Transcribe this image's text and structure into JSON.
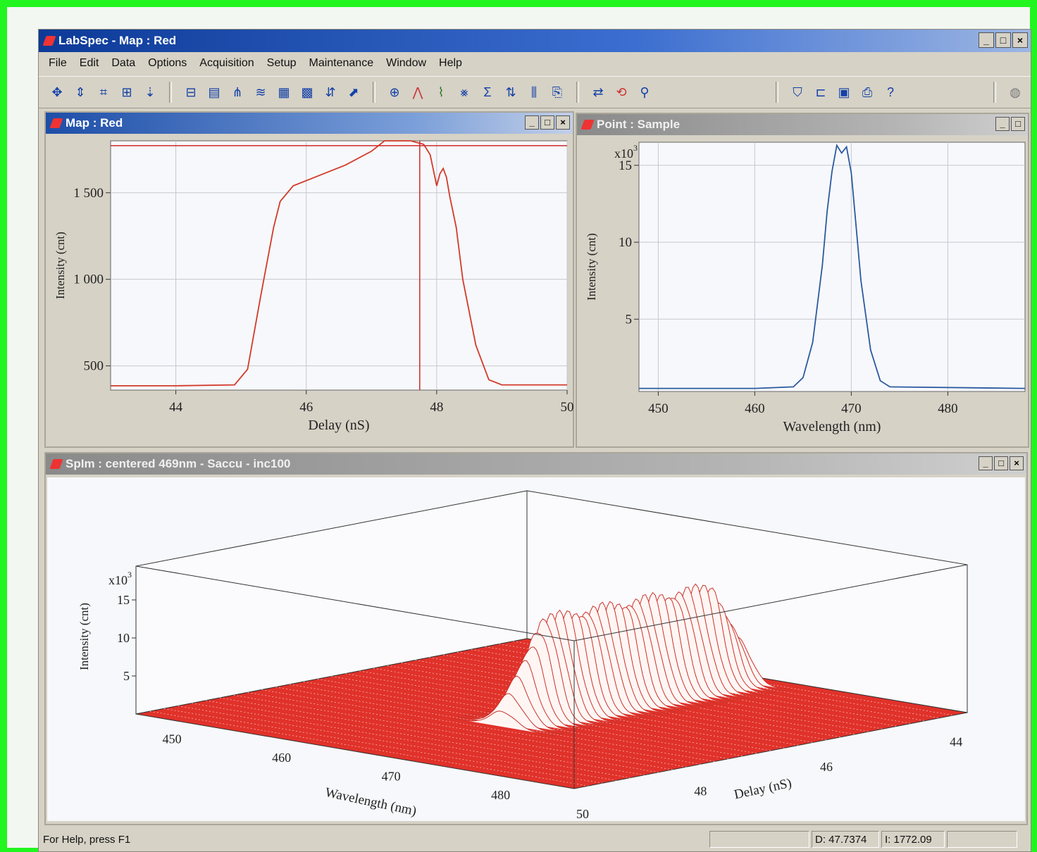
{
  "window": {
    "title": "LabSpec - Map : Red"
  },
  "menu": [
    "File",
    "Edit",
    "Data",
    "Options",
    "Acquisition",
    "Setup",
    "Maintenance",
    "Window",
    "Help"
  ],
  "toolbar_icons": [
    "move-icon",
    "cursor-icon",
    "cross-icon",
    "zoom-icon",
    "marker-icon",
    "baseline-icon",
    "save-spectrum-icon",
    "filter-icon",
    "smooth-icon",
    "grid-icon",
    "map-icon",
    "split-icon",
    "arrow-icon",
    "magnify-icon",
    "peak-icon",
    "fit-icon",
    "deconvolve-icon",
    "sum-icon",
    "sort-icon",
    "stats-icon",
    "export-icon",
    "swap-icon",
    "rotate-icon",
    "search-icon",
    "trash-icon",
    "open-icon",
    "save-icon",
    "print-icon",
    "help-icon",
    "globe-icon"
  ],
  "map_window": {
    "title": "Map : Red"
  },
  "point_window": {
    "title": "Point : Sample"
  },
  "spim_window": {
    "title": "SpIm : centered 469nm - Saccu - inc100"
  },
  "status": {
    "help": "For Help, press F1",
    "d_value": "D: 47.7374",
    "i_value": "I: 1772.09"
  },
  "chart_data": [
    {
      "type": "line",
      "xlabel": "Delay (nS)",
      "ylabel": "Intensity (cnt)",
      "xlim": [
        43,
        50
      ],
      "ylim": [
        360,
        1800
      ],
      "xticks": [
        44,
        46,
        48,
        50
      ],
      "xtick_labels": [
        "44",
        "46",
        "48",
        "50"
      ],
      "yticks": [
        500,
        1000,
        1500
      ],
      "ytick_labels": [
        "500",
        "1 000",
        "1 500"
      ],
      "cursor_x": 47.74,
      "cursor_y": 1772,
      "color": "#d23a2a",
      "x": [
        43.0,
        44.0,
        44.9,
        45.1,
        45.3,
        45.5,
        45.6,
        45.8,
        46.2,
        46.6,
        47.0,
        47.2,
        47.4,
        47.6,
        47.8,
        47.9,
        48.0,
        48.05,
        48.1,
        48.15,
        48.2,
        48.3,
        48.4,
        48.6,
        48.8,
        49.0,
        50.0
      ],
      "y": [
        385,
        385,
        390,
        480,
        900,
        1300,
        1450,
        1540,
        1600,
        1660,
        1740,
        1800,
        1800,
        1800,
        1780,
        1720,
        1540,
        1610,
        1640,
        1590,
        1480,
        1300,
        1000,
        620,
        420,
        390,
        390
      ]
    },
    {
      "type": "line",
      "xlabel": "Wavelength (nm)",
      "ylabel": "Intensity (cnt)",
      "y_multiplier": "x10",
      "y_exponent": "3",
      "xlim": [
        448,
        488
      ],
      "ylim": [
        0.3,
        16.5
      ],
      "xticks": [
        450,
        460,
        470,
        480
      ],
      "xtick_labels": [
        "450",
        "460",
        "470",
        "480"
      ],
      "yticks": [
        5,
        10,
        15
      ],
      "ytick_labels": [
        "5",
        "10",
        "15"
      ],
      "color": "#2a5aa0",
      "x": [
        448,
        460,
        464,
        465,
        466,
        467,
        467.5,
        468,
        468.5,
        469,
        469.5,
        470,
        470.5,
        471,
        472,
        473,
        474,
        488
      ],
      "y": [
        0.5,
        0.5,
        0.6,
        1.2,
        3.5,
        8.5,
        12,
        14.6,
        16.3,
        15.8,
        16.2,
        14.5,
        11,
        7.5,
        3,
        1,
        0.6,
        0.5
      ]
    },
    {
      "type": "surface3d",
      "axis1_label": "Wavelength (nm)",
      "axis1_ticks": [
        "450",
        "460",
        "470",
        "480"
      ],
      "axis2_label": "Delay (nS)",
      "axis2_ticks": [
        "44",
        "46",
        "48",
        "50"
      ],
      "zlabel": "Intensity (cnt)",
      "z_multiplier": "x10",
      "z_exponent": "3",
      "zticks": [
        "5",
        "10",
        "15"
      ],
      "peak_wavelength": 469,
      "peak_intensity": 15,
      "color": "#e0322a"
    }
  ]
}
